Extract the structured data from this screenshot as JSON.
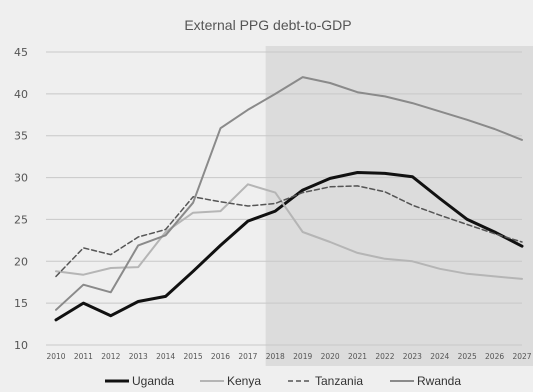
{
  "chart_data": {
    "type": "line",
    "title": "External PPG debt-to-GDP",
    "xlabel": "",
    "ylabel": "",
    "x": [
      "2010",
      "2011",
      "2012",
      "2013",
      "2014",
      "2015",
      "2016",
      "2017",
      "2018",
      "2019",
      "2020",
      "2021",
      "2022",
      "2023",
      "2024",
      "2025",
      "2026",
      "2027"
    ],
    "ylim": [
      10,
      45
    ],
    "yticks": [
      10,
      15,
      20,
      25,
      30,
      35,
      40,
      45
    ],
    "grid": true,
    "legend": "bottom",
    "projection_start": "2018",
    "projection_shade_color": "#dcdcdc",
    "series": [
      {
        "name": "Uganda",
        "color": "#111111",
        "dash": "solid",
        "width": 3,
        "values": [
          13.0,
          15.0,
          13.5,
          15.2,
          15.8,
          18.8,
          21.9,
          24.8,
          26.0,
          28.5,
          29.9,
          30.6,
          30.5,
          30.1,
          27.5,
          25.0,
          23.5,
          21.8
        ]
      },
      {
        "name": "Kenya",
        "color": "#b5b5b5",
        "dash": "solid",
        "width": 2,
        "values": [
          18.8,
          18.4,
          19.2,
          19.3,
          23.5,
          25.8,
          26.0,
          29.2,
          28.2,
          23.5,
          22.3,
          21.0,
          20.3,
          20.0,
          19.1,
          18.5,
          18.2,
          17.9
        ]
      },
      {
        "name": "Tanzania",
        "color": "#555555",
        "dash": "dashed",
        "width": 1.5,
        "values": [
          18.2,
          21.6,
          20.8,
          22.9,
          23.8,
          27.7,
          27.1,
          26.6,
          26.9,
          28.2,
          28.9,
          29.0,
          28.3,
          26.7,
          25.5,
          24.4,
          23.3,
          22.3
        ]
      },
      {
        "name": "Rwanda",
        "color": "#8a8a8a",
        "dash": "solid",
        "width": 2,
        "values": [
          14.2,
          17.2,
          16.3,
          21.9,
          23.1,
          27.0,
          35.9,
          38.1,
          40.0,
          42.0,
          41.3,
          40.2,
          39.7,
          38.9,
          37.9,
          36.9,
          35.8,
          34.5
        ]
      }
    ]
  }
}
